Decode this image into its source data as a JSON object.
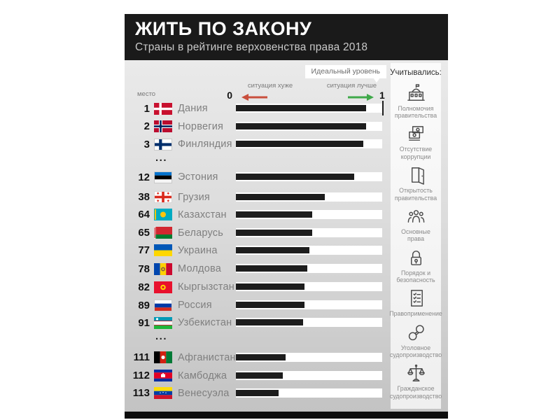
{
  "header": {
    "title": "ЖИТЬ ПО ЗАКОНУ",
    "subtitle": "Страны в рейтинге верховенства права 2018"
  },
  "axis": {
    "rank_col_label": "место",
    "min_label": "0",
    "max_label": "1",
    "worse_label": "ситуация хуже",
    "better_label": "ситуация лучше",
    "ideal_label": "Идеальный уровень"
  },
  "colors": {
    "header_bg": "#1a1a1a",
    "bar": "#1d1d1d",
    "track": "#ffffff",
    "worse_arrow": "#c94f3d",
    "better_arrow": "#3fa94a",
    "footer_bg": "#0d0d0d"
  },
  "rows": [
    {
      "type": "country",
      "rank": "1",
      "name": "Дания",
      "flag": "flag-denmark",
      "value": 0.89
    },
    {
      "type": "country",
      "rank": "2",
      "name": "Норвегия",
      "flag": "flag-norway",
      "value": 0.89
    },
    {
      "type": "country",
      "rank": "3",
      "name": "Финляндия",
      "flag": "flag-finland",
      "value": 0.87
    },
    {
      "type": "gap",
      "label": "..."
    },
    {
      "type": "country",
      "rank": "12",
      "name": "Эстония",
      "flag": "flag-estonia",
      "value": 0.81
    },
    {
      "type": "country",
      "rank": "38",
      "name": "Грузия",
      "flag": "flag-georgia",
      "value": 0.61
    },
    {
      "type": "country",
      "rank": "64",
      "name": "Казахстан",
      "flag": "flag-kazakhstan",
      "value": 0.52
    },
    {
      "type": "country",
      "rank": "65",
      "name": "Беларусь",
      "flag": "flag-belarus",
      "value": 0.52
    },
    {
      "type": "country",
      "rank": "77",
      "name": "Украина",
      "flag": "flag-ukraine",
      "value": 0.5
    },
    {
      "type": "country",
      "rank": "78",
      "name": "Молдова",
      "flag": "flag-moldova",
      "value": 0.49
    },
    {
      "type": "country",
      "rank": "82",
      "name": "Кыргызстан",
      "flag": "flag-kyrgyzstan",
      "value": 0.47
    },
    {
      "type": "country",
      "rank": "89",
      "name": "Россия",
      "flag": "flag-russia",
      "value": 0.47
    },
    {
      "type": "country",
      "rank": "91",
      "name": "Узбекистан",
      "flag": "flag-uzbekistan",
      "value": 0.46
    },
    {
      "type": "gap",
      "label": "..."
    },
    {
      "type": "country",
      "rank": "111",
      "name": "Афганистан",
      "flag": "flag-afghanistan",
      "value": 0.34
    },
    {
      "type": "country",
      "rank": "112",
      "name": "Камбоджа",
      "flag": "flag-cambodia",
      "value": 0.32
    },
    {
      "type": "country",
      "rank": "113",
      "name": "Венесуэла",
      "flag": "flag-venezuela",
      "value": 0.29
    }
  ],
  "sidebar": {
    "title": "Учитывались:",
    "items": [
      {
        "icon": "government-building-icon",
        "label": "Полномочия правительства"
      },
      {
        "icon": "money-icon",
        "label": "Отсутствие коррупции"
      },
      {
        "icon": "open-door-icon",
        "label": "Открытость правительства"
      },
      {
        "icon": "people-icon",
        "label": "Основные права"
      },
      {
        "icon": "padlock-icon",
        "label": "Порядок и безопасность"
      },
      {
        "icon": "document-icon",
        "label": "Правоприменение"
      },
      {
        "icon": "handcuffs-icon",
        "label": "Уголовное судопроизводство"
      },
      {
        "icon": "scales-icon",
        "label": "Гражданское судопроизводство"
      }
    ]
  },
  "chart_data": {
    "type": "bar",
    "orientation": "horizontal",
    "title": "ЖИТЬ ПО ЗАКОНУ",
    "subtitle": "Страны в рейтинге верховенства права 2018",
    "xlim": [
      0,
      1
    ],
    "axis_annotations": [
      "место",
      "ситуация хуже",
      "ситуация лучше",
      "Идеальный уровень",
      "0",
      "1"
    ],
    "categories": [
      "Дания",
      "Норвегия",
      "Финляндия",
      "Эстония",
      "Грузия",
      "Казахстан",
      "Беларусь",
      "Украина",
      "Молдова",
      "Кыргызстан",
      "Россия",
      "Узбекистан",
      "Афганистан",
      "Камбоджа",
      "Венесуэла"
    ],
    "ranks": [
      1,
      2,
      3,
      12,
      38,
      64,
      65,
      77,
      78,
      82,
      89,
      91,
      111,
      112,
      113
    ],
    "values": [
      0.89,
      0.89,
      0.87,
      0.81,
      0.61,
      0.52,
      0.52,
      0.5,
      0.49,
      0.47,
      0.47,
      0.46,
      0.34,
      0.32,
      0.29
    ],
    "gaps_after_rank": [
      3,
      91
    ],
    "legend_position": "none",
    "grid": false
  }
}
